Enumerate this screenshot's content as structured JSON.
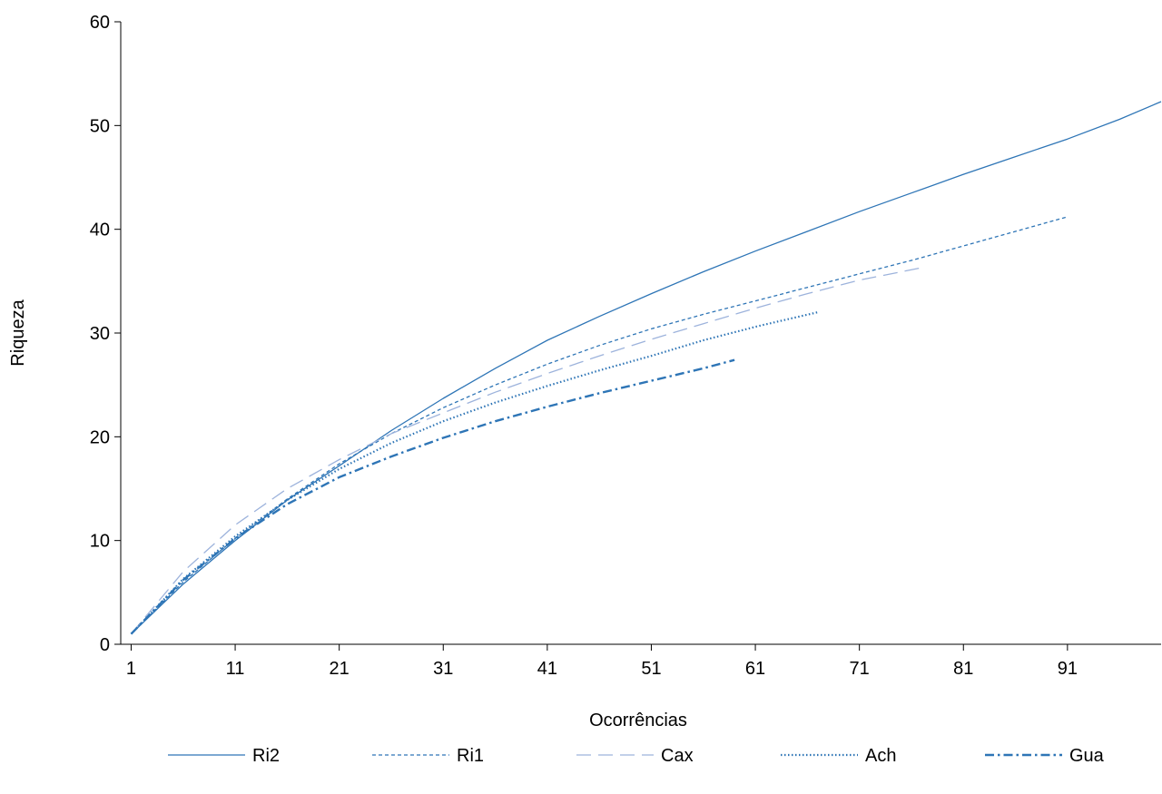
{
  "chart_data": {
    "type": "line",
    "xlabel": "Ocorrências",
    "ylabel": "Riqueza",
    "xlim": [
      0,
      100
    ],
    "ylim": [
      0,
      60
    ],
    "xticks": [
      1,
      11,
      21,
      31,
      41,
      51,
      61,
      71,
      81,
      91
    ],
    "yticks": [
      0,
      10,
      20,
      30,
      40,
      50,
      60
    ],
    "legend_position": "bottom",
    "grid": false,
    "series": [
      {
        "name": "Ri2",
        "color": "#2e75b6",
        "dash": "solid",
        "x": [
          1,
          6,
          11,
          16,
          21,
          26,
          31,
          36,
          41,
          46,
          51,
          56,
          61,
          66,
          71,
          76,
          81,
          86,
          91,
          96,
          100
        ],
        "y": [
          1,
          5.8,
          10,
          13.9,
          17.2,
          20.6,
          23.7,
          26.6,
          29.3,
          31.6,
          33.8,
          35.9,
          37.9,
          39.8,
          41.7,
          43.5,
          45.3,
          47,
          48.7,
          50.6,
          52.3
        ]
      },
      {
        "name": "Ri1",
        "color": "#2e75b6",
        "dash": "short-dash",
        "x": [
          1,
          6,
          11,
          16,
          21,
          26,
          31,
          36,
          41,
          46,
          51,
          56,
          61,
          66,
          71,
          76,
          81,
          86,
          91
        ],
        "y": [
          1,
          6,
          10.2,
          14,
          17.4,
          20.3,
          22.8,
          25,
          27,
          28.8,
          30.4,
          31.8,
          33.1,
          34.4,
          35.7,
          37,
          38.4,
          39.8,
          41.2
        ]
      },
      {
        "name": "Cax",
        "color": "#9db3dc",
        "dash": "long-dash",
        "x": [
          1,
          6,
          11,
          16,
          21,
          26,
          31,
          36,
          41,
          46,
          51,
          56,
          61,
          66,
          71,
          77
        ],
        "y": [
          1,
          7,
          11.5,
          15,
          17.8,
          20.3,
          22.3,
          24.3,
          26.1,
          27.8,
          29.4,
          30.9,
          32.4,
          33.8,
          35.1,
          36.3
        ]
      },
      {
        "name": "Ach",
        "color": "#2e75b6",
        "dash": "dotted",
        "x": [
          1,
          6,
          11,
          16,
          21,
          26,
          31,
          36,
          41,
          46,
          51,
          56,
          61,
          67
        ],
        "y": [
          1,
          6.3,
          10.4,
          13.9,
          16.9,
          19.4,
          21.5,
          23.3,
          24.9,
          26.4,
          27.8,
          29.3,
          30.6,
          32
        ]
      },
      {
        "name": "Gua",
        "color": "#2e75b6",
        "dash": "dash-dot",
        "x": [
          1,
          6,
          11,
          16,
          21,
          26,
          31,
          36,
          41,
          46,
          51,
          56,
          59
        ],
        "y": [
          1,
          6.2,
          10.2,
          13.5,
          16.1,
          18.1,
          19.9,
          21.5,
          22.9,
          24.2,
          25.4,
          26.6,
          27.4
        ]
      }
    ]
  }
}
